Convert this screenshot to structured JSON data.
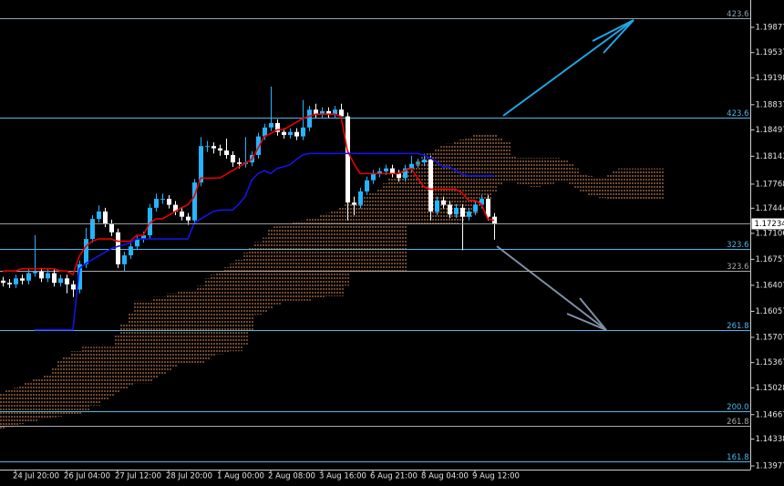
{
  "chart_data": {
    "type": "candlestick",
    "ylim": [
      1.13928,
      1.20245
    ],
    "yticks": [
      1.19877,
      1.19537,
      1.19198,
      1.18837,
      1.18497,
      1.18143,
      1.17768,
      1.17444,
      1.17106,
      1.16757,
      1.16407,
      1.16057,
      1.15707,
      1.15367,
      1.15028,
      1.14667,
      1.14338,
      1.13977
    ],
    "categories": [
      null,
      null,
      "24 Jul 20:00",
      null,
      null,
      null,
      null,
      null,
      null,
      null,
      "26 Jul 04:00",
      null,
      null,
      null,
      null,
      null,
      null,
      null,
      "27 Jul 12:00",
      null,
      null,
      null,
      null,
      null,
      null,
      null,
      "28 Jul 20:00",
      null,
      null,
      null,
      null,
      null,
      null,
      null,
      "1 Aug 00:00",
      null,
      null,
      null,
      null,
      null,
      null,
      null,
      "2 Aug 08:00",
      null,
      null,
      null,
      null,
      null,
      null,
      null,
      "3 Aug 16:00",
      null,
      null,
      null,
      null,
      null,
      null,
      null,
      "6 Aug 21:00",
      null,
      null,
      null,
      null,
      null,
      null,
      null,
      "8 Aug 04:00",
      null,
      null,
      null,
      null,
      null,
      null,
      null,
      "9 Aug 12:00",
      null,
      null,
      null
    ],
    "up_color": "#26b4ff",
    "down_color": "#ffffff",
    "open": [
      1.1647,
      1.1644,
      1.1642,
      1.165,
      1.1647,
      1.1657,
      1.1659,
      1.165,
      1.1657,
      1.1644,
      1.165,
      1.1642,
      1.1635,
      1.1669,
      1.1703,
      1.173,
      1.174,
      1.1724,
      1.1712,
      1.1669,
      1.1681,
      1.1693,
      1.1703,
      1.1708,
      1.1745,
      1.1757,
      1.1757,
      1.1749,
      1.174,
      1.1733,
      1.1728,
      1.1779,
      1.1828,
      1.1828,
      1.1825,
      1.1822,
      1.1816,
      1.1806,
      1.1804,
      1.1806,
      1.1816,
      1.1841,
      1.1853,
      1.1859,
      1.1847,
      1.1843,
      1.1847,
      1.1841,
      1.1853,
      1.1877,
      1.1871,
      1.1875,
      1.1871,
      1.1877,
      1.1868,
      1.1752,
      1.1749,
      1.1767,
      1.1782,
      1.1791,
      1.1794,
      1.1798,
      1.1791,
      1.1785,
      1.1798,
      1.1804,
      1.1806,
      1.181,
      1.174,
      1.1755,
      1.1749,
      1.1736,
      1.1745,
      1.1733,
      1.174,
      1.1749,
      1.1757,
      1.1733
    ],
    "high": [
      1.1652,
      1.1649,
      1.1655,
      1.1655,
      1.1662,
      1.1708,
      1.1664,
      1.1662,
      1.1662,
      1.1655,
      1.1655,
      1.1647,
      1.1674,
      1.1718,
      1.1735,
      1.1748,
      1.1745,
      1.1729,
      1.1717,
      1.1686,
      1.1698,
      1.1708,
      1.1713,
      1.175,
      1.1764,
      1.1764,
      1.1762,
      1.1754,
      1.1745,
      1.1738,
      1.1784,
      1.184,
      1.1835,
      1.1833,
      1.183,
      1.1838,
      1.1821,
      1.1812,
      1.184,
      1.1821,
      1.1846,
      1.1858,
      1.1908,
      1.1864,
      1.1852,
      1.1852,
      1.1852,
      1.189,
      1.1882,
      1.1885,
      1.188,
      1.188,
      1.1882,
      1.1885,
      1.1873,
      1.176,
      1.1772,
      1.1787,
      1.1796,
      1.1799,
      1.1803,
      1.1803,
      1.1796,
      1.1803,
      1.1815,
      1.1811,
      1.1818,
      1.1815,
      1.176,
      1.176,
      1.1754,
      1.175,
      1.175,
      1.1745,
      1.1754,
      1.1762,
      1.1762,
      1.1738
    ],
    "low": [
      1.1639,
      1.1637,
      1.1637,
      1.1642,
      1.1642,
      1.1652,
      1.1645,
      1.1645,
      1.1639,
      1.1639,
      1.163,
      1.1625,
      1.163,
      1.1664,
      1.1698,
      1.1725,
      1.1719,
      1.1707,
      1.1664,
      1.166,
      1.1676,
      1.1688,
      1.1698,
      1.1703,
      1.174,
      1.175,
      1.1744,
      1.1735,
      1.1728,
      1.1722,
      1.1723,
      1.1774,
      1.182,
      1.1818,
      1.1815,
      1.1811,
      1.18,
      1.1798,
      1.1799,
      1.1801,
      1.1811,
      1.1836,
      1.1848,
      1.1842,
      1.1838,
      1.1838,
      1.1836,
      1.1836,
      1.1848,
      1.1866,
      1.1866,
      1.1866,
      1.1866,
      1.1863,
      1.1728,
      1.1735,
      1.1744,
      1.1762,
      1.1777,
      1.1786,
      1.1789,
      1.1786,
      1.178,
      1.178,
      1.1793,
      1.1799,
      1.1801,
      1.1728,
      1.1735,
      1.1744,
      1.1731,
      1.1731,
      1.1688,
      1.1728,
      1.1735,
      1.1744,
      1.1728,
      1.1702
    ],
    "close": [
      1.1644,
      1.1642,
      1.165,
      1.1647,
      1.1657,
      1.1659,
      1.165,
      1.1657,
      1.1644,
      1.165,
      1.1642,
      1.1635,
      1.1669,
      1.1703,
      1.173,
      1.174,
      1.1724,
      1.1712,
      1.1669,
      1.1681,
      1.1693,
      1.1703,
      1.1708,
      1.1745,
      1.1757,
      1.1757,
      1.1749,
      1.174,
      1.1733,
      1.1728,
      1.1779,
      1.1828,
      1.1828,
      1.1825,
      1.1822,
      1.1816,
      1.1806,
      1.1804,
      1.1806,
      1.1816,
      1.1841,
      1.1853,
      1.1859,
      1.1847,
      1.1843,
      1.1847,
      1.1841,
      1.1853,
      1.1877,
      1.1871,
      1.1875,
      1.1871,
      1.1877,
      1.1868,
      1.1752,
      1.1749,
      1.1767,
      1.1782,
      1.1791,
      1.1794,
      1.1798,
      1.1791,
      1.1785,
      1.1798,
      1.1804,
      1.1806,
      1.181,
      1.174,
      1.1755,
      1.1749,
      1.1736,
      1.1745,
      1.1733,
      1.174,
      1.1749,
      1.1757,
      1.1733,
      1.17234
    ],
    "lines": [
      {
        "color": "#e80000",
        "values": [
          1.166,
          1.166,
          1.166,
          1.1663,
          1.1663,
          1.1663,
          1.1663,
          1.1663,
          1.1663,
          1.166,
          1.166,
          1.1655,
          1.168,
          1.1693,
          1.17,
          1.1703,
          1.1703,
          1.1703,
          1.17,
          1.17,
          1.17,
          1.1708,
          1.1708,
          1.1724,
          1.173,
          1.173,
          1.1735,
          1.174,
          1.1745,
          1.1749,
          1.176,
          1.1785,
          1.1785,
          1.1785,
          1.1785,
          1.179,
          1.1795,
          1.18,
          1.1805,
          1.181,
          1.1825,
          1.1841,
          1.1845,
          1.185,
          1.185,
          1.1855,
          1.186,
          1.1865,
          1.1868,
          1.1871,
          1.1871,
          1.1871,
          1.1871,
          1.1868,
          1.1822,
          1.1805,
          1.1791,
          1.1791,
          1.1791,
          1.1791,
          1.1791,
          1.1791,
          1.1791,
          1.1795,
          1.1798,
          1.1785,
          1.1773,
          1.177,
          1.177,
          1.177,
          1.177,
          1.177,
          1.1765,
          1.1755,
          1.1755,
          1.175,
          1.173,
          1.1728
        ]
      },
      {
        "color": "#1414e6",
        "values": [
          null,
          null,
          null,
          null,
          null,
          1.1581,
          1.1581,
          1.1581,
          1.1581,
          1.1581,
          1.1581,
          1.1581,
          1.1663,
          1.167,
          1.1675,
          1.168,
          1.1685,
          1.169,
          1.1693,
          1.1695,
          1.1698,
          1.1703,
          1.1703,
          1.1703,
          1.1703,
          1.1703,
          1.1703,
          1.1703,
          1.1703,
          1.1703,
          1.1724,
          1.173,
          1.1735,
          1.174,
          1.1742,
          1.1742,
          1.1742,
          1.175,
          1.176,
          1.1782,
          1.1791,
          1.1795,
          1.1791,
          1.1798,
          1.18,
          1.1803,
          1.181,
          1.1816,
          1.1818,
          1.1818,
          1.1818,
          1.1818,
          1.1818,
          1.1818,
          1.1818,
          1.1818,
          1.1818,
          1.1818,
          1.1818,
          1.1818,
          1.1818,
          1.1818,
          1.1818,
          1.1818,
          1.1818,
          1.1818,
          1.1816,
          1.1812,
          1.1806,
          1.18,
          1.18,
          1.1795,
          1.179,
          1.1788,
          1.1788,
          1.1788,
          1.1788,
          1.1788
        ]
      }
    ],
    "cloud": {
      "color": "#e0915a",
      "span_a": [
        1.1497,
        1.15,
        1.1503,
        1.1506,
        1.151,
        1.1515,
        1.1515,
        1.152,
        1.153,
        1.154,
        1.1545,
        1.1552,
        1.1552,
        1.1558,
        1.1558,
        1.1558,
        1.1558,
        1.1558,
        1.1575,
        1.159,
        1.1605,
        1.162,
        1.162,
        1.162,
        1.1625,
        1.1625,
        1.163,
        1.163,
        1.1632,
        1.1632,
        1.1632,
        1.164,
        1.165,
        1.1655,
        1.166,
        1.1665,
        1.167,
        1.1675,
        1.1685,
        1.1692,
        1.1699,
        1.1705,
        1.1718,
        1.172,
        1.1722,
        1.1724,
        1.1726,
        1.1728,
        1.173,
        1.1732,
        1.1735,
        1.1738,
        1.174,
        1.1745,
        1.175,
        1.1752,
        1.1755,
        1.176,
        1.1767,
        1.1772,
        1.1778,
        1.1785,
        1.1791,
        1.1795,
        1.18,
        1.1808,
        1.1816,
        1.182,
        1.1824,
        1.1828,
        1.1831,
        1.1834,
        1.1837,
        1.184,
        1.1843,
        1.1843,
        1.1845,
        1.1843,
        1.1838,
        1.1834,
        1.1816,
        1.1812,
        1.1812,
        1.1812,
        1.1812,
        1.1812,
        1.1812,
        1.1812,
        1.181,
        1.1805,
        1.1798,
        1.1791,
        1.1788,
        1.1785,
        1.1785,
        1.179,
        1.1795,
        1.1798,
        1.1798,
        1.1798,
        1.1798,
        1.1798,
        1.1798,
        1.1798
      ],
      "span_b": [
        1.1448,
        1.145,
        1.1452,
        1.1454,
        1.1456,
        1.1458,
        1.146,
        1.1462,
        1.1463,
        1.1464,
        1.1465,
        1.1466,
        1.1466,
        1.147,
        1.1479,
        1.1479,
        1.1485,
        1.149,
        1.1495,
        1.15,
        1.1505,
        1.1509,
        1.1509,
        1.1509,
        1.1515,
        1.152,
        1.1525,
        1.153,
        1.1534,
        1.1534,
        1.1534,
        1.1534,
        1.154,
        1.1545,
        1.1548,
        1.155,
        1.1552,
        1.1552,
        1.156,
        1.158,
        1.1601,
        1.1605,
        1.161,
        1.1615,
        1.1618,
        1.162,
        1.162,
        1.162,
        1.162,
        1.1622,
        1.1624,
        1.1626,
        1.1626,
        1.1626,
        1.164,
        1.1657,
        1.1658,
        1.1659,
        1.166,
        1.166,
        1.166,
        1.166,
        1.166,
        1.166,
        1.1724,
        1.1724,
        1.1724,
        1.1724,
        1.1724,
        1.1724,
        1.1724,
        1.1724,
        1.1727,
        1.173,
        1.1735,
        1.1745,
        1.1755,
        1.1765,
        1.1775,
        1.1779,
        1.1779,
        1.1777,
        1.1775,
        1.1773,
        1.1773,
        1.1775,
        1.1777,
        1.1779,
        1.1779,
        1.1775,
        1.177,
        1.1765,
        1.1761,
        1.1761,
        1.1758,
        1.1757,
        1.1757,
        1.1757,
        1.1757,
        1.1757,
        1.1757,
        1.1757,
        1.1757,
        1.1757
      ]
    },
    "levels": [
      {
        "label": "423.6",
        "price": 1.2,
        "color": "#8fa3b3"
      },
      {
        "label": "423.6",
        "price": 1.1866,
        "color": "#4db8e8"
      },
      {
        "label": "323.6",
        "price": 1.169,
        "color": "#4db8e8"
      },
      {
        "label": "323.6",
        "price": 1.166,
        "color": "#a8a8a8"
      },
      {
        "label": "261.8",
        "price": 1.1581,
        "color": "#4db8e8"
      },
      {
        "label": "200.0",
        "price": 1.1471,
        "color": "#4db8e8"
      },
      {
        "label": "261.8",
        "price": 1.1452,
        "color": "#a8a8a8"
      },
      {
        "label": "161.8",
        "price": 1.1404,
        "color": "#4db8e8"
      }
    ],
    "last_price": 1.17234
  }
}
